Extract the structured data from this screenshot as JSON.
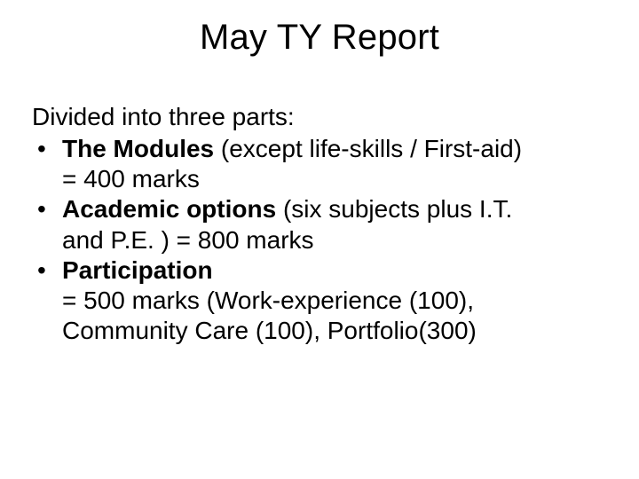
{
  "slide": {
    "title": "May TY Report",
    "title_fontsize": 40,
    "body_fontsize": 28,
    "text_color": "#000000",
    "background_color": "#ffffff",
    "intro": "Divided into three parts:",
    "bullets": [
      {
        "bold": "The Modules",
        "rest_line1": " (except life-skills / First-aid)",
        "line2": "= 400 marks"
      },
      {
        "bold": "Academic options",
        "rest_line1": " (six subjects plus I.T.",
        "line2": "and P.E. ) = 800 marks"
      },
      {
        "bold": "Participation",
        "rest_line1": "",
        "line2": "= 500 marks (Work-experience (100),",
        "line3": "Community Care (100), Portfolio(300)"
      }
    ]
  }
}
